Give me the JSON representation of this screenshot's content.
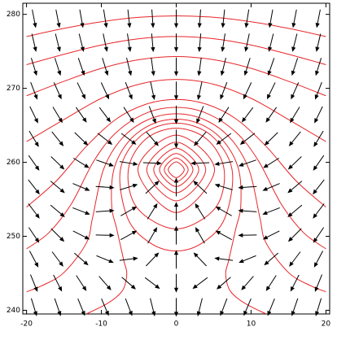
{
  "chart_data": {
    "type": "vector_field",
    "xlim": [
      -20.5,
      20.5
    ],
    "ylim": [
      239.5,
      281.5
    ],
    "xticks": [
      -20,
      -10,
      0,
      10,
      20
    ],
    "yticks": [
      240,
      250,
      260,
      270,
      280
    ],
    "arrow_color": "#000000",
    "contour_color": "#e8262a",
    "field": {
      "x": [
        -19,
        -15.83,
        -12.67,
        -9.5,
        -6.33,
        -3.17,
        0,
        3.17,
        6.33,
        9.5,
        12.67,
        15.83,
        19
      ],
      "y": [
        279.4,
        276.15,
        272.9,
        269.65,
        266.4,
        263.15,
        259.9,
        256.65,
        253.4,
        250.15,
        246.9,
        243.65,
        240.4
      ],
      "angles": [
        [
          11,
          11,
          10,
          9,
          6,
          4,
          0,
          -4,
          -6,
          -9,
          -10,
          -11,
          -11
        ],
        [
          13,
          14,
          14,
          12,
          9,
          5,
          0,
          -5,
          -9,
          -12,
          -14,
          -14,
          -13
        ],
        [
          17,
          18,
          19,
          17,
          14,
          8,
          0,
          -8,
          -14,
          -17,
          -19,
          -18,
          -17
        ],
        [
          21,
          24,
          26,
          25,
          21,
          12,
          0,
          -12,
          -21,
          -25,
          -26,
          -24,
          -21
        ],
        [
          26,
          31,
          35,
          37,
          33,
          21,
          0,
          -21,
          -33,
          -37,
          -35,
          -31,
          -26
        ],
        [
          31,
          39,
          46,
          52,
          53,
          41,
          0,
          -41,
          -53,
          -52,
          -46,
          -39,
          -31
        ],
        [
          35,
          46,
          58,
          71,
          81,
          88,
          null,
          -88,
          -81,
          -71,
          -58,
          -46,
          -35
        ],
        [
          38,
          50,
          67,
          86,
          107,
          133,
          180,
          -133,
          -107,
          -86,
          -67,
          -50,
          -38
        ],
        [
          37,
          50,
          69,
          94,
          120,
          148,
          180,
          -148,
          -120,
          -94,
          -69,
          -50,
          -37
        ],
        [
          34,
          45,
          63,
          89,
          119,
          150,
          180,
          -150,
          -119,
          -89,
          -63,
          -45,
          -34
        ],
        [
          28,
          37,
          49,
          68,
          97,
          136,
          180,
          -136,
          -97,
          -68,
          -49,
          -37,
          -28
        ],
        [
          22,
          27,
          33,
          41,
          49,
          53,
          0,
          -53,
          -49,
          -41,
          -33,
          -27,
          -22
        ],
        [
          17,
          19,
          22,
          23,
          21,
          14,
          0,
          -14,
          -21,
          -23,
          -22,
          -19,
          -17
        ]
      ]
    },
    "contours": [
      {
        "x": [
          -20,
          -15,
          -10,
          -5,
          0,
          5,
          10,
          15,
          20
        ],
        "y": [
          277.0,
          278.1,
          279.0,
          279.6,
          279.8,
          279.6,
          279.0,
          278.1,
          277.0
        ]
      },
      {
        "x": [
          -20,
          -15,
          -10,
          -5,
          0,
          5,
          10,
          15,
          20
        ],
        "y": [
          273.2,
          274.6,
          275.85,
          276.7,
          277.0,
          276.7,
          275.85,
          274.6,
          273.2
        ]
      },
      {
        "x": [
          -20,
          -15,
          -10,
          -5,
          0,
          5,
          10,
          15,
          20
        ],
        "y": [
          269.0,
          270.95,
          272.7,
          273.87,
          274.3,
          273.87,
          272.7,
          270.95,
          269.0
        ]
      },
      {
        "x": [
          -20,
          -15,
          -10,
          -5,
          0,
          5,
          10,
          15,
          20
        ],
        "y": [
          262.8,
          265.78,
          268.65,
          270.55,
          271.2,
          270.55,
          268.65,
          265.78,
          262.8
        ]
      },
      {
        "x": [
          -20,
          -16,
          -12,
          -8,
          -4,
          0,
          4,
          8,
          12,
          16,
          20
        ],
        "y": [
          253.95,
          257.5,
          262.17,
          265.86,
          267.87,
          268.5,
          267.87,
          265.86,
          262.17,
          257.5,
          253.95
        ]
      },
      {
        "x": [
          -20,
          -17,
          -14,
          -11,
          -8,
          -4,
          0,
          4,
          8,
          11,
          14,
          17,
          20
        ],
        "y": [
          248.3,
          250.5,
          254.4,
          260.18,
          264.05,
          266.65,
          267.42,
          266.65,
          264.05,
          260.18,
          254.4,
          250.5,
          248.3
        ]
      },
      {
        "x": [
          -20,
          -18,
          -15,
          -12,
          -11.17,
          -9.73,
          -7.27,
          -3.88,
          0,
          3.88,
          7.27,
          9.73,
          11.17,
          12,
          15,
          18,
          20
        ],
        "y": [
          242.5,
          243.3,
          245.1,
          249.1,
          252.55,
          259,
          263.2,
          265.71,
          266.56,
          265.71,
          263.2,
          259,
          252.55,
          249.1,
          245.1,
          243.3,
          242.5
        ]
      },
      {
        "x": [
          -12,
          -9.5,
          -8.04,
          -7,
          -6.6,
          -7,
          -7.96,
          -8.62,
          -8.34,
          -6.44,
          -3.48,
          0,
          3.48,
          6.44,
          8.34,
          8.62,
          7.96,
          7,
          6.6,
          7,
          8.04,
          9.5,
          12
        ],
        "y": [
          239.5,
          240.75,
          241.75,
          243,
          245,
          246.7,
          251.04,
          254.03,
          259,
          262.72,
          265.04,
          265.83,
          265.04,
          262.72,
          259,
          254.03,
          251.04,
          246.7,
          245,
          243,
          241.75,
          240.75,
          239.5
        ]
      },
      {
        "closed": true,
        "x": [
          0,
          4.65,
          7.46,
          6.51,
          3.58,
          0,
          -3.58,
          -6.51,
          -7.46,
          -4.65
        ],
        "y": [
          265.3,
          263.65,
          259,
          252.49,
          249.17,
          248.02,
          249.17,
          252.49,
          259,
          263.65
        ]
      },
      {
        "closed": true,
        "x": [
          0,
          4.11,
          6.4,
          5.2,
          0,
          -5.2,
          -6.4,
          -4.11
        ],
        "y": [
          264.61,
          263.11,
          259,
          253.8,
          251,
          253.8,
          259,
          263.11
        ]
      },
      {
        "closed": true,
        "x": [
          0,
          5.12,
          0,
          -5.12
        ],
        "y": [
          263.68,
          259,
          253.21,
          259
        ]
      },
      {
        "closed": true,
        "x": [
          0,
          3.94,
          0,
          -3.94
        ],
        "y": [
          262.72,
          259,
          254.79,
          259
        ]
      },
      {
        "closed": true,
        "x": [
          0,
          3.01,
          0,
          -3.01
        ],
        "y": [
          261.91,
          259,
          255.87,
          259
        ]
      },
      {
        "closed": true,
        "x": [
          0,
          2.23,
          0,
          -2.23
        ],
        "y": [
          261.19,
          259,
          256.73,
          259
        ]
      },
      {
        "closed": true,
        "x": [
          0,
          1.6,
          0,
          -1.6
        ],
        "y": [
          260.585,
          259,
          257.385,
          259
        ]
      },
      {
        "closed": true,
        "x": [
          0,
          1.07,
          0,
          -1.07
        ],
        "y": [
          260.06,
          259,
          257.93,
          259
        ]
      }
    ]
  }
}
